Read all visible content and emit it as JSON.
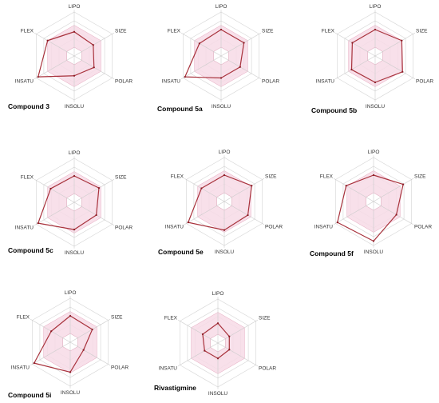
{
  "chart_data": [
    {
      "type": "radar",
      "title": "Compound 3",
      "axes": [
        "LIPO",
        "SIZE",
        "POLAR",
        "INSOLU",
        "INSATU",
        "FLEX"
      ],
      "values": [
        0.55,
        0.5,
        0.52,
        0.45,
        0.95,
        0.7
      ]
    },
    {
      "type": "radar",
      "title": "Compound 5a",
      "axes": [
        "LIPO",
        "SIZE",
        "POLAR",
        "INSOLU",
        "INSATU",
        "FLEX"
      ],
      "values": [
        0.6,
        0.6,
        0.5,
        0.5,
        0.95,
        0.57
      ]
    },
    {
      "type": "radar",
      "title": "Compound 5b",
      "axes": [
        "LIPO",
        "SIZE",
        "POLAR",
        "INSOLU",
        "INSATU",
        "FLEX"
      ],
      "values": [
        0.6,
        0.7,
        0.72,
        0.6,
        0.62,
        0.6
      ]
    },
    {
      "type": "radar",
      "title": "Compound 5c",
      "axes": [
        "LIPO",
        "SIZE",
        "POLAR",
        "INSOLU",
        "INSATU",
        "FLEX"
      ],
      "values": [
        0.6,
        0.65,
        0.58,
        0.62,
        0.95,
        0.62
      ]
    },
    {
      "type": "radar",
      "title": "Compound 5e",
      "axes": [
        "LIPO",
        "SIZE",
        "POLAR",
        "INSOLU",
        "INSATU",
        "FLEX"
      ],
      "values": [
        0.6,
        0.72,
        0.62,
        0.65,
        0.95,
        0.6
      ]
    },
    {
      "type": "radar",
      "title": "Compound 5f",
      "axes": [
        "LIPO",
        "SIZE",
        "POLAR",
        "INSOLU",
        "INSATU",
        "FLEX"
      ],
      "values": [
        0.6,
        0.78,
        0.6,
        0.9,
        0.95,
        0.72
      ]
    },
    {
      "type": "radar",
      "title": "Compound 5i",
      "axes": [
        "LIPO",
        "SIZE",
        "POLAR",
        "INSOLU",
        "INSATU",
        "FLEX"
      ],
      "values": [
        0.6,
        0.58,
        0.35,
        0.68,
        0.95,
        0.5
      ]
    },
    {
      "type": "radar",
      "title": "Rivastigmine",
      "axes": [
        "LIPO",
        "SIZE",
        "POLAR",
        "INSOLU",
        "INSATU",
        "FLEX"
      ],
      "values": [
        0.45,
        0.3,
        0.3,
        0.35,
        0.35,
        0.4
      ]
    }
  ],
  "colors": {
    "data_line": "#a8323c",
    "data_point": "#8b1a24",
    "optimal_fill": "#f7dbe6",
    "optimal_stroke": "#e6a8bf",
    "grid": "#d4d4d4",
    "axis": "#cccccc",
    "text": "#333333",
    "title": "#000000"
  }
}
